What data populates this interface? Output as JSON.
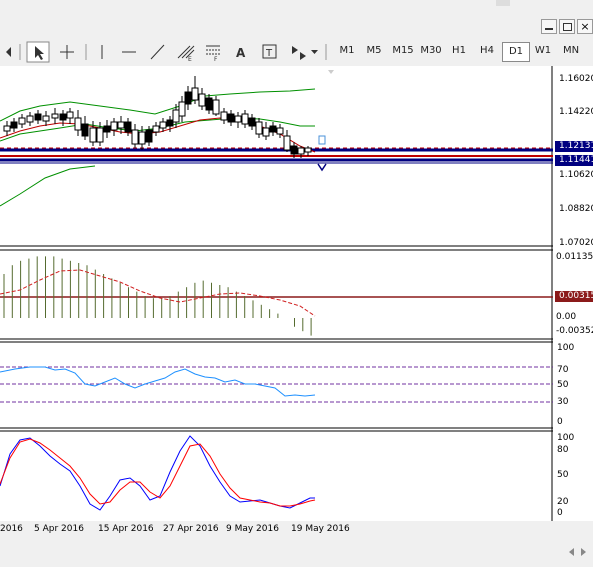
{
  "timeframes": [
    "M1",
    "M5",
    "M15",
    "M30",
    "H1",
    "H4",
    "D1",
    "W1",
    "MN"
  ],
  "active_timeframe": "D1",
  "price_axis": [
    "1.16020",
    "1.14220",
    "1.12131",
    "1.11441",
    "1.10620",
    "1.08820",
    "1.07020"
  ],
  "macd_axis": [
    "0.011356",
    "0.003150",
    "0.00",
    "-0.00352"
  ],
  "rsi_axis": [
    "100",
    "70",
    "50",
    "30",
    "0"
  ],
  "stoch_axis": [
    "100",
    "80",
    "50",
    "20",
    "0"
  ],
  "dates": [
    "2016",
    "5 Apr 2016",
    "15 Apr 2016",
    "27 Apr 2016",
    "9 May 2016",
    "19 May 2016"
  ],
  "text_tool": "A",
  "colors": {
    "bull": "#ffffff",
    "bear": "#000000",
    "bb": "#009000",
    "ma": "#c00000",
    "line_blue": "#000080",
    "macd_hist": "#556b2f",
    "rsi": "#1e90ff",
    "stoch_blue": "#0000ff",
    "stoch_red": "#ff0000"
  }
}
